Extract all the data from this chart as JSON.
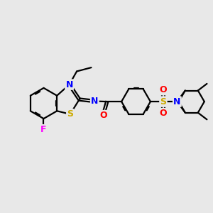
{
  "bg_color": "#e8e8e8",
  "atom_colors": {
    "C": "#000000",
    "N": "#0000ff",
    "O": "#ff0000",
    "S": "#ccaa00",
    "F": "#ff00ff"
  },
  "bond_color": "#000000",
  "bond_width": 1.6,
  "dbo": 0.06,
  "font_size": 8.5,
  "fig_width": 3.0,
  "fig_height": 3.0,
  "dpi": 100
}
